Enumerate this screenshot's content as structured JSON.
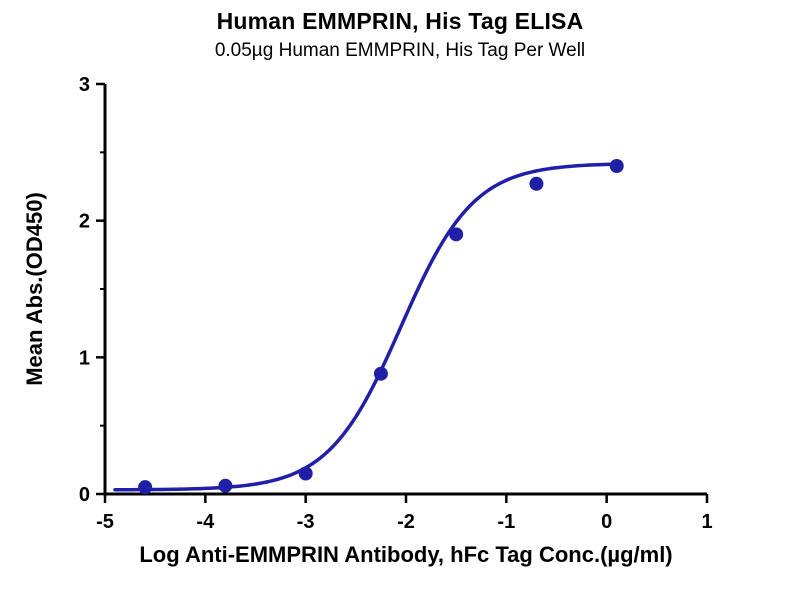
{
  "chart_data": {
    "type": "scatter",
    "title": "Human EMMPRIN, His Tag ELISA",
    "subtitle": "0.05µg Human EMMPRIN, His Tag Per Well",
    "xlabel": "Log Anti-EMMPRIN Antibody, hFc Tag Conc.(µg/ml)",
    "ylabel": "Mean Abs.(OD450)",
    "xlim": [
      -5,
      1
    ],
    "ylim": [
      0,
      3
    ],
    "x_ticks": [
      -5,
      -4,
      -3,
      -2,
      -1,
      0,
      1
    ],
    "y_ticks": [
      0,
      1,
      2,
      3
    ],
    "y_minor_ticks": [
      0.5,
      1.5,
      2.5
    ],
    "grid": "off",
    "legend": "none",
    "points": {
      "x": [
        -4.6,
        -3.8,
        -3.0,
        -2.25,
        -1.5,
        -0.7,
        0.1
      ],
      "y": [
        0.05,
        0.06,
        0.15,
        0.88,
        1.9,
        2.27,
        2.4
      ]
    },
    "fit_curve": {
      "model": "4PL-logistic",
      "bottom": 0.03,
      "top": 2.42,
      "logEC50": -2.05,
      "hill": 1.2,
      "x_start": -4.9,
      "x_end": 0.12
    },
    "colors": {
      "curve": "#1f1fa8",
      "point": "#1f1fa8",
      "axis": "#000000",
      "text": "#000000"
    }
  }
}
